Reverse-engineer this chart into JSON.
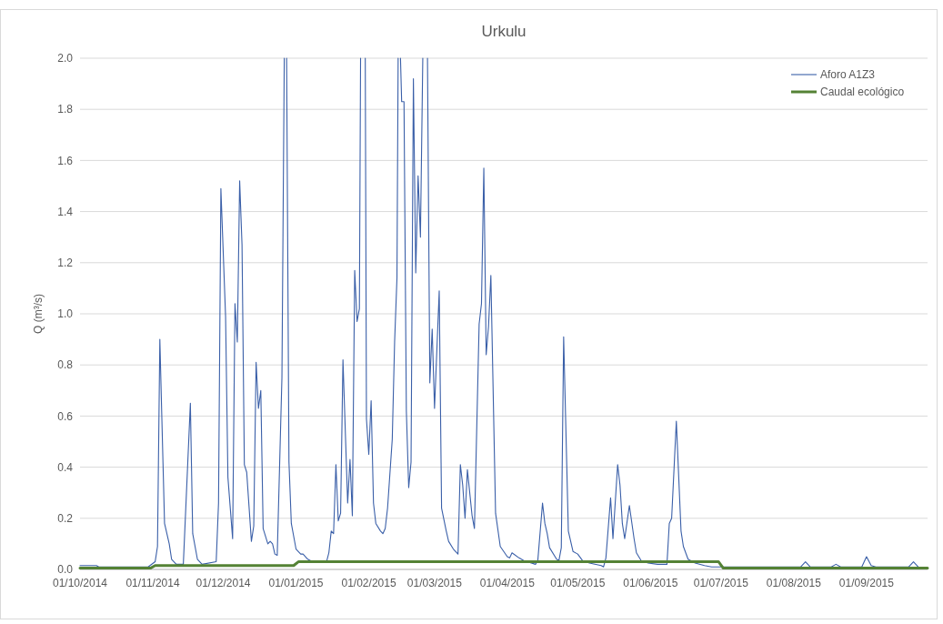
{
  "chart_data": {
    "type": "line",
    "title": "Urkulu",
    "ylabel": "Q (m³/s)",
    "xlim": [
      "2014-10-01",
      "2015-09-27"
    ],
    "xticks": [
      {
        "value": "2014-10-01",
        "label": "01/10/2014"
      },
      {
        "value": "2014-11-01",
        "label": "01/11/2014"
      },
      {
        "value": "2014-12-01",
        "label": "01/12/2014"
      },
      {
        "value": "2015-01-01",
        "label": "01/01/2015"
      },
      {
        "value": "2015-02-01",
        "label": "01/02/2015"
      },
      {
        "value": "2015-03-01",
        "label": "01/03/2015"
      },
      {
        "value": "2015-04-01",
        "label": "01/04/2015"
      },
      {
        "value": "2015-05-01",
        "label": "01/05/2015"
      },
      {
        "value": "2015-06-01",
        "label": "01/06/2015"
      },
      {
        "value": "2015-07-01",
        "label": "01/07/2015"
      },
      {
        "value": "2015-08-01",
        "label": "01/08/2015"
      },
      {
        "value": "2015-09-01",
        "label": "01/09/2015"
      }
    ],
    "ylim": [
      0,
      2
    ],
    "yticks": [
      {
        "value": 0,
        "label": "0.0"
      },
      {
        "value": 0.2,
        "label": "0.2"
      },
      {
        "value": 0.4,
        "label": "0.4"
      },
      {
        "value": 0.6,
        "label": "0.6"
      },
      {
        "value": 0.8,
        "label": "0.8"
      },
      {
        "value": 1,
        "label": "1.0"
      },
      {
        "value": 1.2,
        "label": "1.2"
      },
      {
        "value": 1.4,
        "label": "1.4"
      },
      {
        "value": 1.6,
        "label": "1.6"
      },
      {
        "value": 1.8,
        "label": "1.8"
      },
      {
        "value": 2,
        "label": "2.0"
      }
    ],
    "grid": "y",
    "legend": "top right",
    "line_style": "solid",
    "marker": "none",
    "series": [
      {
        "name": "Aforo A1Z3",
        "color": "#3a5fa8",
        "x": [
          "2014-10-01",
          "2014-10-08",
          "2014-10-09",
          "2014-10-30",
          "2014-11-02",
          "2014-11-03",
          "2014-11-04",
          "2014-11-06",
          "2014-11-08",
          "2014-11-09",
          "2014-11-11",
          "2014-11-14",
          "2014-11-17",
          "2014-11-18",
          "2014-11-20",
          "2014-11-22",
          "2014-11-28",
          "2014-11-29",
          "2014-11-30",
          "2014-12-02",
          "2014-12-03",
          "2014-12-05",
          "2014-12-06",
          "2014-12-07",
          "2014-12-08",
          "2014-12-09",
          "2014-12-10",
          "2014-12-11",
          "2014-12-13",
          "2014-12-14",
          "2014-12-15",
          "2014-12-16",
          "2014-12-17",
          "2014-12-18",
          "2014-12-20",
          "2014-12-21",
          "2014-12-22",
          "2014-12-23",
          "2014-12-24",
          "2014-12-26",
          "2014-12-27",
          "2014-12-27T12:00",
          "2014-12-28",
          "2014-12-29",
          "2014-12-30",
          "2015-01-01",
          "2015-01-03",
          "2015-01-04",
          "2015-01-06",
          "2015-01-08",
          "2015-01-14",
          "2015-01-15",
          "2015-01-16",
          "2015-01-17",
          "2015-01-18",
          "2015-01-19",
          "2015-01-20",
          "2015-01-21",
          "2015-01-23",
          "2015-01-24",
          "2015-01-25",
          "2015-01-26",
          "2015-01-27",
          "2015-01-28",
          "2015-01-28T12:00",
          "2015-01-29T12:00",
          "2015-01-30T12:00",
          "2015-01-31",
          "2015-02-01",
          "2015-02-02",
          "2015-02-03",
          "2015-02-04",
          "2015-02-06",
          "2015-02-07",
          "2015-02-08",
          "2015-02-09",
          "2015-02-11",
          "2015-02-12",
          "2015-02-13",
          "2015-02-13T12:00",
          "2015-02-14",
          "2015-02-14T12:00",
          "2015-02-15",
          "2015-02-16",
          "2015-02-17",
          "2015-02-18",
          "2015-02-19",
          "2015-02-20",
          "2015-02-21",
          "2015-02-22",
          "2015-02-23",
          "2015-02-24",
          "2015-02-25",
          "2015-02-26",
          "2015-02-27",
          "2015-02-28",
          "2015-03-01",
          "2015-03-03",
          "2015-03-04",
          "2015-03-06",
          "2015-03-07",
          "2015-03-09",
          "2015-03-11",
          "2015-03-12",
          "2015-03-13",
          "2015-03-14",
          "2015-03-15",
          "2015-03-17",
          "2015-03-18",
          "2015-03-20",
          "2015-03-21",
          "2015-03-22",
          "2015-03-23",
          "2015-03-24",
          "2015-03-25",
          "2015-03-27",
          "2015-03-29",
          "2015-04-01",
          "2015-04-02",
          "2015-04-03",
          "2015-04-06",
          "2015-04-08",
          "2015-04-13",
          "2015-04-14",
          "2015-04-16",
          "2015-04-17",
          "2015-04-18",
          "2015-04-19",
          "2015-04-22",
          "2015-04-23",
          "2015-04-24",
          "2015-04-25",
          "2015-04-27",
          "2015-04-29",
          "2015-05-01",
          "2015-05-03",
          "2015-05-06",
          "2015-05-11",
          "2015-05-12",
          "2015-05-13",
          "2015-05-15",
          "2015-05-16",
          "2015-05-18",
          "2015-05-19",
          "2015-05-20",
          "2015-05-21",
          "2015-05-23",
          "2015-05-25",
          "2015-05-26",
          "2015-05-28",
          "2015-05-31",
          "2015-06-04",
          "2015-06-08",
          "2015-06-09",
          "2015-06-10",
          "2015-06-12",
          "2015-06-14",
          "2015-06-15",
          "2015-06-17",
          "2015-06-20",
          "2015-06-24",
          "2015-06-27",
          "2015-06-30",
          "2015-08-04",
          "2015-08-06",
          "2015-08-08",
          "2015-08-17",
          "2015-08-19",
          "2015-08-21",
          "2015-08-30",
          "2015-09-01",
          "2015-09-03",
          "2015-09-05",
          "2015-09-19",
          "2015-09-21",
          "2015-09-23",
          "2015-09-27"
        ],
        "values": [
          0.015,
          0.015,
          0.01,
          0.01,
          0.03,
          0.09,
          0.9,
          0.18,
          0.1,
          0.04,
          0.02,
          0.02,
          0.65,
          0.14,
          0.04,
          0.02,
          0.03,
          0.26,
          1.49,
          0.99,
          0.36,
          0.12,
          1.04,
          0.89,
          1.52,
          1.27,
          0.41,
          0.38,
          0.11,
          0.17,
          0.81,
          0.63,
          0.7,
          0.16,
          0.1,
          0.11,
          0.1,
          0.06,
          0.055,
          0.75,
          2,
          null,
          2,
          0.42,
          0.18,
          0.08,
          0.06,
          0.06,
          0.04,
          0.03,
          0.03,
          0.065,
          0.15,
          0.14,
          0.41,
          0.19,
          0.22,
          0.82,
          0.26,
          0.43,
          0.21,
          1.17,
          0.97,
          1.02,
          2,
          null,
          2,
          0.59,
          0.45,
          0.66,
          0.26,
          0.18,
          0.15,
          0.14,
          0.16,
          0.24,
          0.51,
          0.89,
          1.14,
          2,
          null,
          2,
          1.83,
          1.83,
          0.62,
          0.32,
          0.42,
          1.92,
          1.16,
          1.54,
          1.3,
          2,
          null,
          2,
          0.73,
          0.94,
          0.63,
          1.09,
          0.24,
          0.15,
          0.11,
          0.08,
          0.06,
          0.41,
          0.33,
          0.2,
          0.39,
          0.21,
          0.16,
          0.96,
          1.04,
          1.57,
          0.84,
          0.95,
          1.15,
          0.22,
          0.09,
          0.05,
          0.045,
          0.065,
          0.045,
          0.035,
          0.02,
          0.035,
          0.26,
          0.18,
          0.14,
          0.085,
          0.04,
          0.035,
          0.085,
          0.91,
          0.15,
          0.07,
          0.06,
          0.035,
          0.025,
          0.015,
          0.01,
          0.045,
          0.28,
          0.12,
          0.41,
          0.33,
          0.18,
          0.12,
          0.25,
          0.12,
          0.065,
          0.035,
          0.025,
          0.02,
          0.02,
          0.18,
          0.2,
          0.58,
          0.15,
          0.09,
          0.04,
          0.025,
          0.015,
          0.01,
          0.01,
          0.01,
          0.03,
          0.01,
          0.01,
          0.02,
          0.01,
          0.01,
          0.05,
          0.015,
          0.01,
          0.01,
          0.03,
          0.01,
          0.005
        ]
      },
      {
        "name": "Caudal ecológico",
        "color": "#548235",
        "x": [
          "2014-10-01",
          "2014-10-31",
          "2014-11-02",
          "2014-12-31",
          "2015-01-02",
          "2015-06-30",
          "2015-07-02",
          "2015-09-27"
        ],
        "values": [
          0.005,
          0.005,
          0.015,
          0.015,
          0.03,
          0.03,
          0.005,
          0.005
        ]
      }
    ]
  }
}
